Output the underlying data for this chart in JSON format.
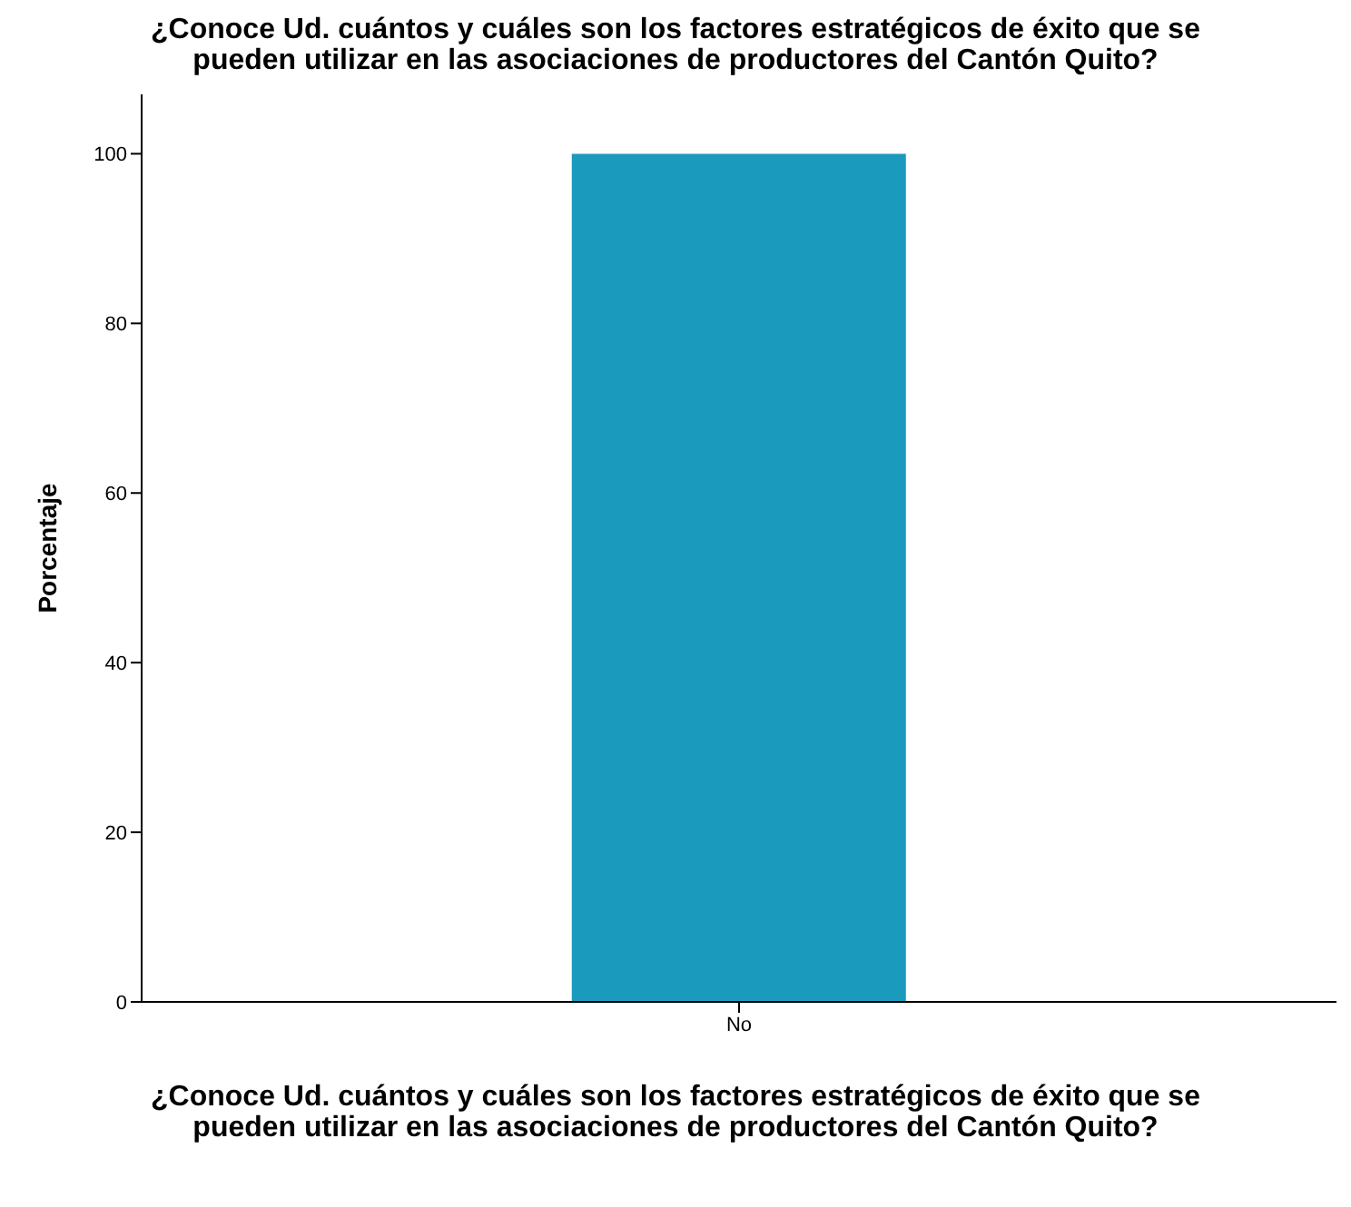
{
  "chart_data": {
    "type": "bar",
    "title": "¿Conoce Ud. cuántos y cuáles son los factores estratégicos de éxito que se pueden utilizar en las asociaciones de productores del Cantón Quito?",
    "xlabel": "¿Conoce Ud. cuántos y cuáles son los factores estratégicos de éxito que se pueden utilizar en las asociaciones de productores del Cantón Quito?",
    "ylabel": "Porcentaje",
    "categories": [
      "No"
    ],
    "values": [
      100
    ],
    "color": "#1a9bbd",
    "ylim": [
      0,
      107
    ],
    "yticks": [
      0,
      20,
      40,
      60,
      80,
      100
    ],
    "grid": false,
    "legend": false
  }
}
